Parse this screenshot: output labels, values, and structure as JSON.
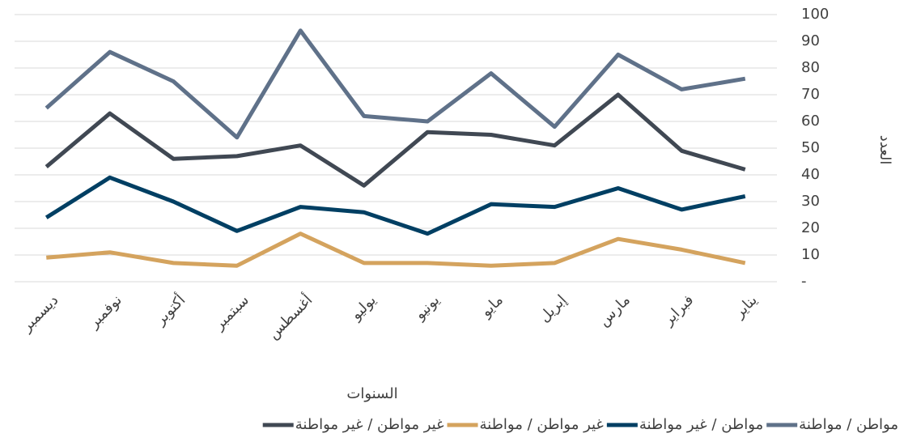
{
  "chart_data": {
    "type": "line",
    "x_label": "السنوات",
    "y_label": "العدد",
    "categories": [
      "ديسمبر",
      "نوفمبر",
      "أكتوبر",
      "سبتمبر",
      "أغسطس",
      "يوليو",
      "يونيو",
      "مايو",
      "إبريل",
      "مارس",
      "فبراير",
      "يناير"
    ],
    "series": [
      {
        "name": "مواطن / مواطنة",
        "color": "#5f7189",
        "values": [
          65,
          86,
          75,
          54,
          94,
          62,
          60,
          78,
          58,
          85,
          72,
          76
        ]
      },
      {
        "name": "مواطن / غير مواطنة",
        "color": "#003f63",
        "values": [
          24,
          39,
          30,
          19,
          28,
          26,
          18,
          29,
          28,
          35,
          27,
          32
        ]
      },
      {
        "name": "غير مواطن / مواطنة",
        "color": "#d4a35e",
        "values": [
          9,
          11,
          7,
          6,
          18,
          7,
          7,
          6,
          7,
          16,
          12,
          7
        ]
      },
      {
        "name": "غير مواطن / غير مواطنة",
        "color": "#404853",
        "values": [
          43,
          63,
          46,
          47,
          51,
          36,
          56,
          55,
          51,
          70,
          49,
          42
        ]
      }
    ],
    "ylim": [
      0,
      100
    ],
    "yticks": [
      {
        "value": 0,
        "label": "-"
      },
      10,
      20,
      30,
      40,
      50,
      60,
      70,
      80,
      90,
      100
    ],
    "grid": true,
    "legend": "bottom"
  }
}
